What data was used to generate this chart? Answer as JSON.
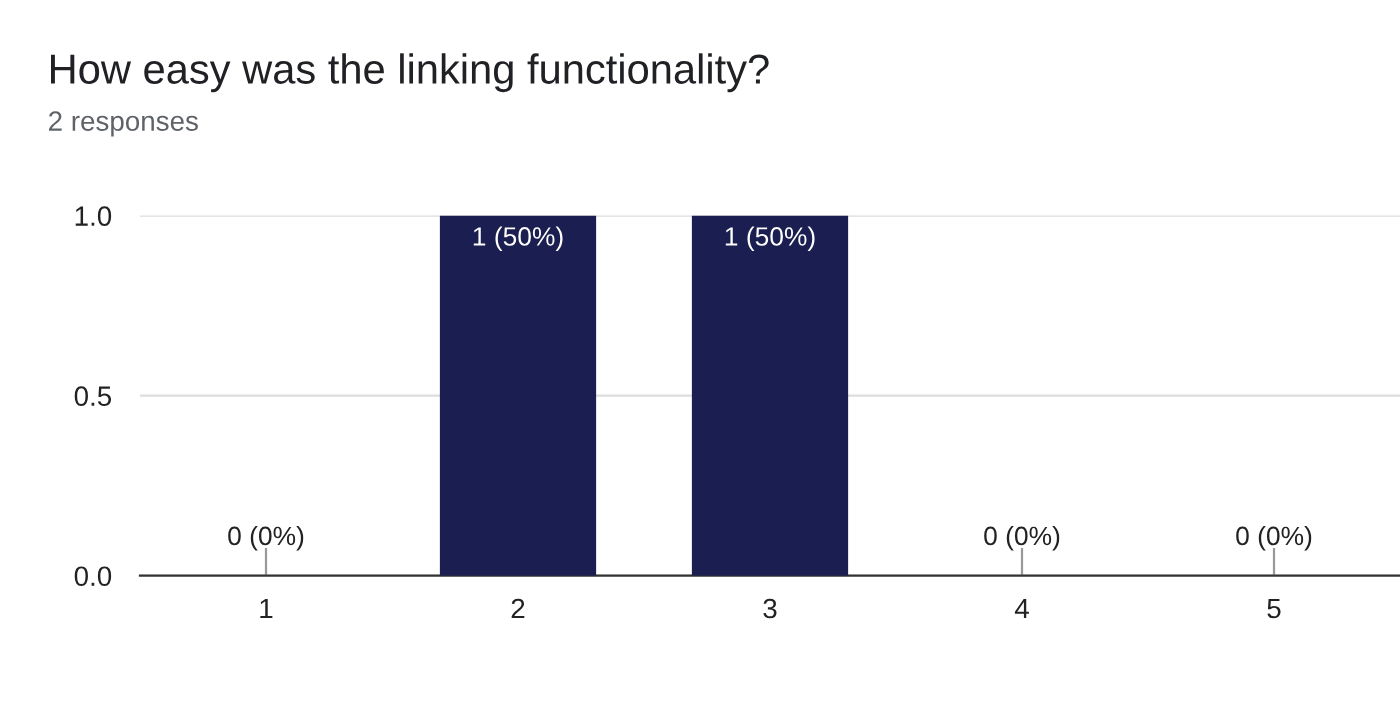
{
  "chart_data": {
    "type": "bar",
    "title": "How easy was the linking functionality?",
    "subtitle": "2 responses",
    "categories": [
      "1",
      "2",
      "3",
      "4",
      "5"
    ],
    "values": [
      0,
      1,
      1,
      0,
      0
    ],
    "value_labels": [
      "0 (0%)",
      "1 (50%)",
      "1 (50%)",
      "0 (0%)",
      "0 (0%)"
    ],
    "color": "#1b1e50",
    "ylim": [
      0,
      1.0
    ],
    "yticks": [
      {
        "value": 0,
        "label": "0.0"
      },
      {
        "value": 0.5,
        "label": "0.5"
      },
      {
        "value": 1.0,
        "label": "1.0"
      }
    ],
    "grid": "y"
  }
}
